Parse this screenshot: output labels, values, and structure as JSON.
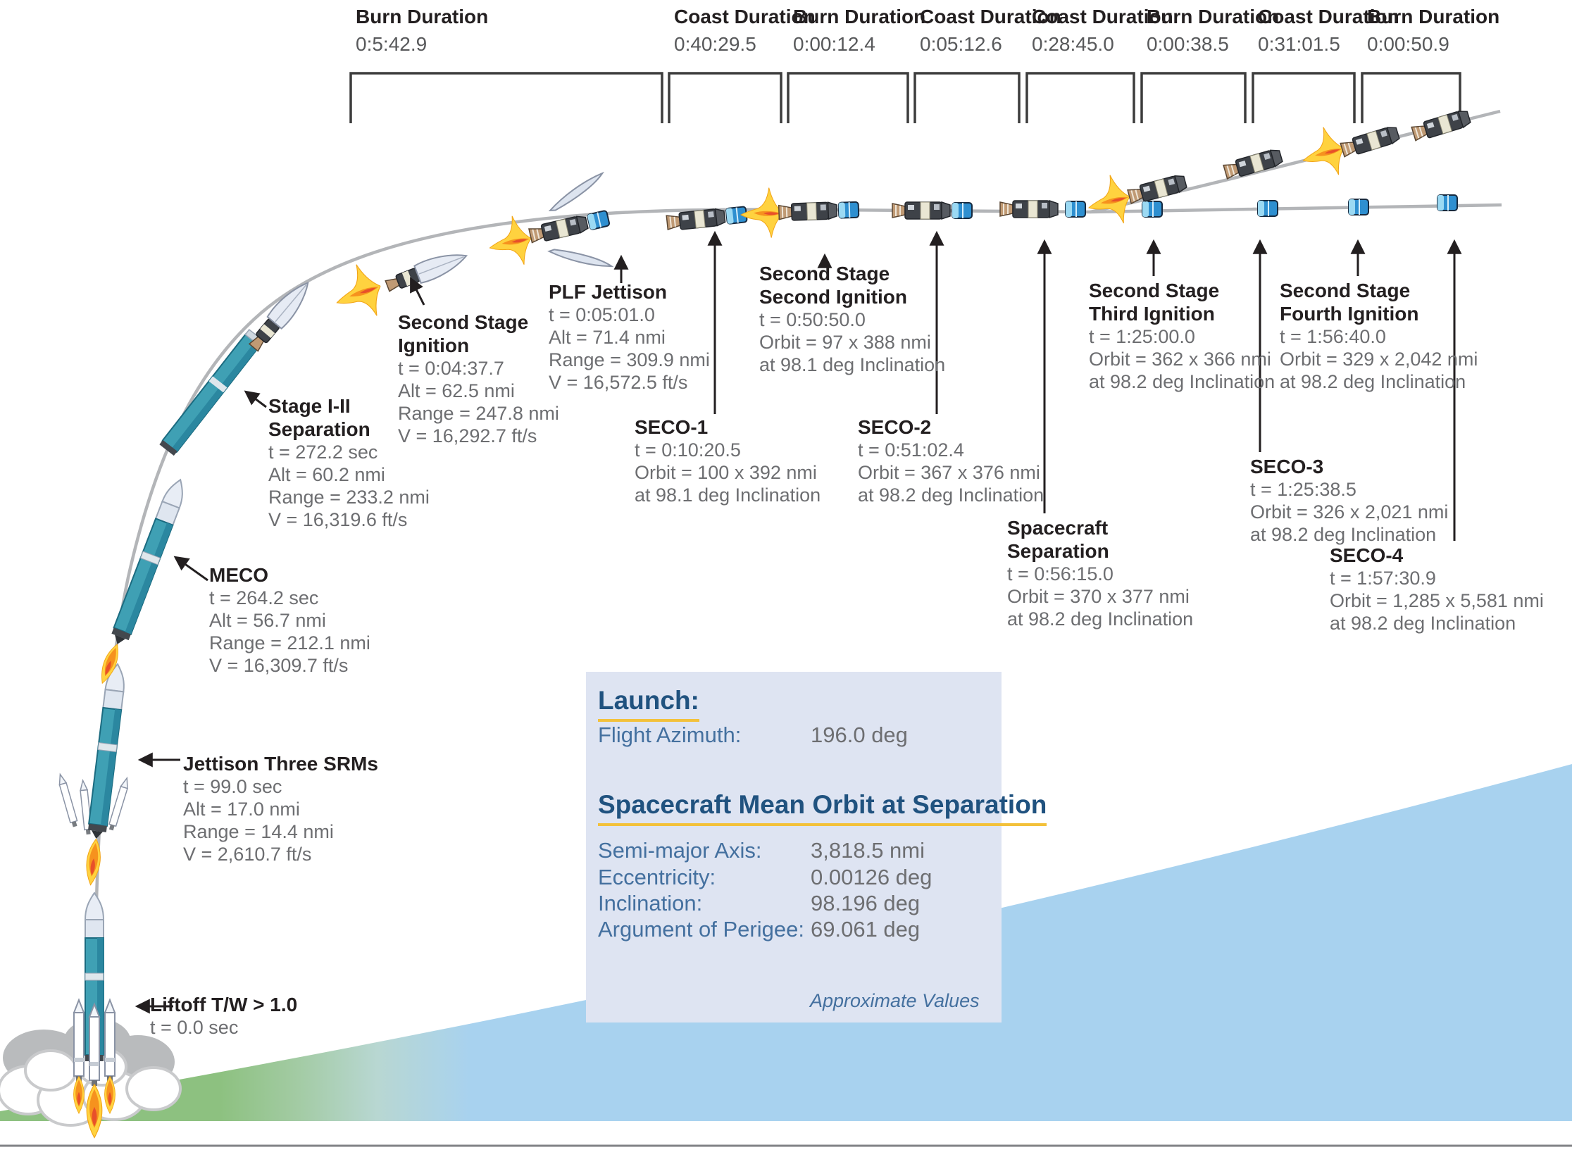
{
  "durations": [
    {
      "label": "Burn Duration",
      "time": "0:5:42.9"
    },
    {
      "label": "Coast Duration",
      "time": "0:40:29.5"
    },
    {
      "label": "Burn Duration",
      "time": "0:00:12.4"
    },
    {
      "label": "Coast Duration",
      "time": "0:05:12.6"
    },
    {
      "label": "Coast Duration",
      "time": "0:28:45.0"
    },
    {
      "label": "Burn Duration",
      "time": "0:00:38.5"
    },
    {
      "label": "Coast Duration",
      "time": "0:31:01.5"
    },
    {
      "label": "Burn Duration",
      "time": "0:00:50.9"
    }
  ],
  "events": [
    {
      "id": "liftoff",
      "title": [
        "Liftoff T/W > 1.0"
      ],
      "lines": [
        "t = 0.0 sec"
      ]
    },
    {
      "id": "jettison-three-srms",
      "title": [
        "Jettison Three SRMs"
      ],
      "lines": [
        "t = 99.0 sec",
        "Alt = 17.0 nmi",
        "Range = 14.4 nmi",
        "V = 2,610.7 ft/s"
      ]
    },
    {
      "id": "meco",
      "title": [
        "MECO"
      ],
      "lines": [
        "t = 264.2 sec",
        "Alt = 56.7 nmi",
        "Range = 212.1 nmi",
        "V = 16,309.7 ft/s"
      ]
    },
    {
      "id": "stage-1-2-separation",
      "title": [
        "Stage I-II",
        "Separation"
      ],
      "lines": [
        "t = 272.2 sec",
        "Alt = 60.2 nmi",
        "Range = 233.2 nmi",
        "V = 16,319.6 ft/s"
      ]
    },
    {
      "id": "second-stage-ignition",
      "title": [
        "Second Stage",
        "Ignition"
      ],
      "lines": [
        "t = 0:04:37.7",
        "Alt = 62.5 nmi",
        "Range = 247.8 nmi",
        "V = 16,292.7 ft/s"
      ]
    },
    {
      "id": "plf-jettison",
      "title": [
        "PLF Jettison"
      ],
      "lines": [
        "t = 0:05:01.0",
        "Alt = 71.4 nmi",
        "Range = 309.9 nmi",
        "V = 16,572.5 ft/s"
      ]
    },
    {
      "id": "seco-1",
      "title": [
        "SECO-1"
      ],
      "lines": [
        "t = 0:10:20.5",
        "Orbit = 100 x 392 nmi",
        "at 98.1 deg Inclination"
      ]
    },
    {
      "id": "second-stage-second-ignition",
      "title": [
        "Second Stage",
        "Second Ignition"
      ],
      "lines": [
        "t = 0:50:50.0",
        "Orbit = 97 x 388 nmi",
        "at 98.1 deg Inclination"
      ]
    },
    {
      "id": "seco-2",
      "title": [
        "SECO-2"
      ],
      "lines": [
        "t = 0:51:02.4",
        "Orbit = 367 x 376 nmi",
        "at 98.2 deg Inclination"
      ]
    },
    {
      "id": "spacecraft-separation",
      "title": [
        "Spacecraft",
        "Separation"
      ],
      "lines": [
        "t = 0:56:15.0",
        "Orbit = 370 x 377 nmi",
        "at 98.2 deg Inclination"
      ]
    },
    {
      "id": "second-stage-third-ignition",
      "title": [
        "Second Stage",
        "Third Ignition"
      ],
      "lines": [
        "t = 1:25:00.0",
        "Orbit = 362 x 366 nmi",
        "at 98.2 deg Inclination"
      ]
    },
    {
      "id": "seco-3",
      "title": [
        "SECO-3"
      ],
      "lines": [
        "t = 1:25:38.5",
        "Orbit = 326 x 2,021 nmi",
        "at 98.2 deg Inclination"
      ]
    },
    {
      "id": "second-stage-fourth-ignition",
      "title": [
        "Second Stage",
        "Fourth Ignition"
      ],
      "lines": [
        "t = 1:56:40.0",
        "Orbit = 329 x 2,042 nmi",
        "at 98.2 deg Inclination"
      ]
    },
    {
      "id": "seco-4",
      "title": [
        "SECO-4"
      ],
      "lines": [
        "t = 1:57:30.9",
        "Orbit = 1,285 x 5,581 nmi",
        "at 98.2 deg Inclination"
      ]
    }
  ],
  "launch_info": {
    "title": "Launch:",
    "rows_launch": [
      {
        "label": "Flight Azimuth:",
        "value": "196.0 deg"
      }
    ],
    "section_title": "Spacecraft Mean Orbit at Separation",
    "rows_orbit": [
      {
        "label": "Semi-major Axis:",
        "value": "3,818.5 nmi"
      },
      {
        "label": "Eccentricity:",
        "value": "0.00126 deg"
      },
      {
        "label": "Inclination:",
        "value": "98.196 deg"
      },
      {
        "label": "Argument of Perigee:",
        "value": "69.061 deg"
      }
    ],
    "footnote": "Approximate Values"
  },
  "colors": {
    "trajectory_gray": "#b3b5b8",
    "stage_teal": "#3fa0b4",
    "payload_blue": "#2e8fd0",
    "flame_yellow": "#ffd23f",
    "flame_orange": "#f6921e",
    "ground_green": "#8dc180",
    "ocean_blue": "#a8d2ef",
    "panel_background": "#dee4f2",
    "heading_blue": "#20527f",
    "underline_gold": "#f3c13a",
    "text_dark": "#231f20",
    "text_gray": "#6d6e71"
  }
}
